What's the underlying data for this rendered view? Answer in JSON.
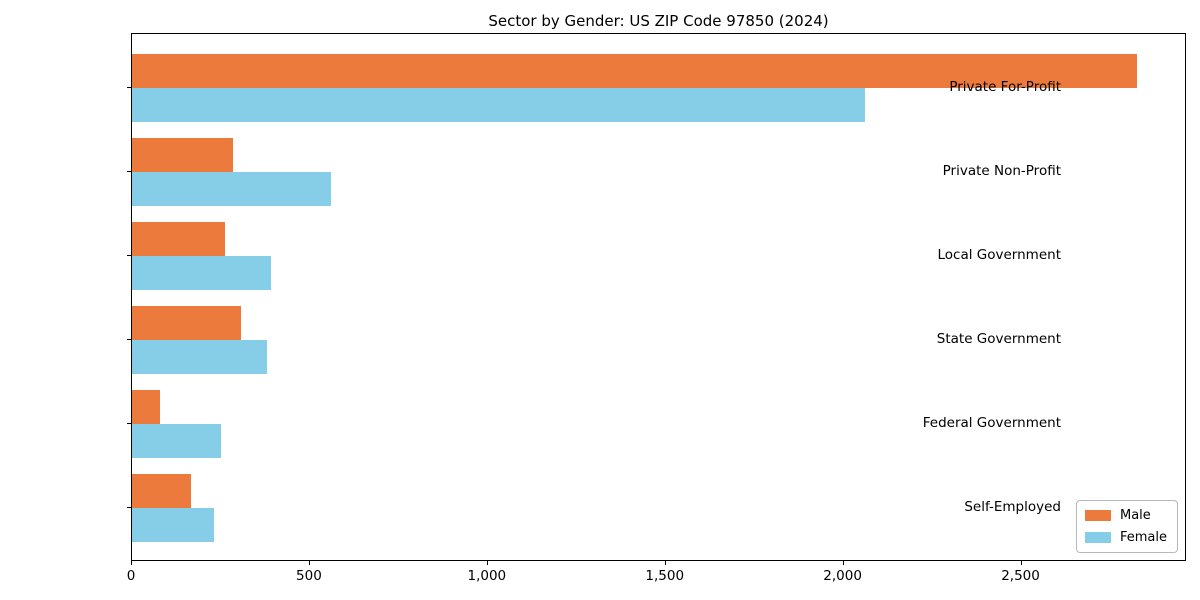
{
  "chart_data": {
    "type": "bar",
    "orientation": "horizontal",
    "title": "Sector by Gender: US ZIP Code 97850 (2024)",
    "categories": [
      "Private For-Profit",
      "Private Non-Profit",
      "Local Government",
      "State Government",
      "Federal Government",
      "Self-Employed"
    ],
    "series": [
      {
        "name": "Male",
        "color": "#EC7A3C",
        "values": [
          2825,
          285,
          260,
          305,
          80,
          165
        ]
      },
      {
        "name": "Female",
        "color": "#86CDE8",
        "values": [
          2060,
          560,
          390,
          380,
          250,
          230
        ]
      }
    ],
    "xlabel": "",
    "ylabel": "",
    "xlim": [
      0,
      2965
    ],
    "xticks": [
      0,
      500,
      1000,
      1500,
      2000,
      2500
    ],
    "xtick_labels": [
      "0",
      "500",
      "1,000",
      "1,500",
      "2,000",
      "2,500"
    ],
    "grid": false,
    "legend_position": "lower right"
  }
}
